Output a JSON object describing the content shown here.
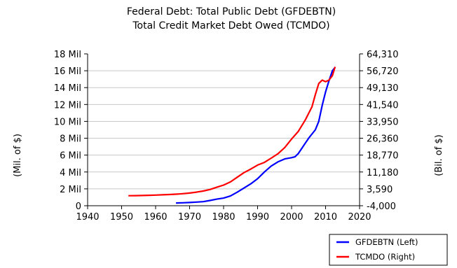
{
  "chart_data": {
    "type": "line",
    "title": "Federal Debt: Total Public Debt (GFDEBTN)",
    "subtitle": "Total Credit Market Debt Owed (TCMDO)",
    "xlabel": "",
    "ylabel_left": "(Mil. of $)",
    "ylabel_right": "(Bil. of $)",
    "xlim": [
      1940,
      2020
    ],
    "ylim_left": [
      0,
      18000000
    ],
    "ylim_right": [
      -4000,
      64310
    ],
    "grid": true,
    "legend_position": "bottom-right",
    "x_ticks": [
      "1940",
      "1950",
      "1960",
      "1970",
      "1980",
      "1990",
      "2000",
      "2010",
      "2020"
    ],
    "y_left_ticks": [
      "0",
      "2 Mil",
      "4 Mil",
      "6 Mil",
      "8 Mil",
      "10 Mil",
      "12 Mil",
      "14 Mil",
      "16 Mil",
      "18 Mil"
    ],
    "y_right_ticks": [
      "-4,000",
      "3,590",
      "11,180",
      "18,770",
      "26,360",
      "33,950",
      "41,540",
      "49,130",
      "56,720",
      "64,310"
    ],
    "series": [
      {
        "name": "GFDEBTN (Left)",
        "axis": "left",
        "color": "#0000ff",
        "points": [
          [
            1966,
            320000
          ],
          [
            1968,
            350000
          ],
          [
            1970,
            380000
          ],
          [
            1972,
            430000
          ],
          [
            1974,
            480000
          ],
          [
            1976,
            620000
          ],
          [
            1978,
            780000
          ],
          [
            1980,
            900000
          ],
          [
            1982,
            1150000
          ],
          [
            1984,
            1600000
          ],
          [
            1986,
            2100000
          ],
          [
            1988,
            2600000
          ],
          [
            1990,
            3200000
          ],
          [
            1992,
            4000000
          ],
          [
            1994,
            4700000
          ],
          [
            1996,
            5200000
          ],
          [
            1998,
            5550000
          ],
          [
            2000,
            5700000
          ],
          [
            2001,
            5800000
          ],
          [
            2002,
            6200000
          ],
          [
            2003,
            6800000
          ],
          [
            2004,
            7400000
          ],
          [
            2005,
            8000000
          ],
          [
            2006,
            8500000
          ],
          [
            2007,
            9000000
          ],
          [
            2008,
            10000000
          ],
          [
            2009,
            11900000
          ],
          [
            2010,
            13500000
          ],
          [
            2011,
            14800000
          ],
          [
            2012,
            16000000
          ],
          [
            2012.8,
            16400000
          ]
        ]
      },
      {
        "name": "TCMDO (Right)",
        "axis": "right",
        "color": "#ff0000",
        "points": [
          [
            1952,
            500
          ],
          [
            1954,
            520
          ],
          [
            1956,
            600
          ],
          [
            1958,
            700
          ],
          [
            1960,
            800
          ],
          [
            1962,
            900
          ],
          [
            1964,
            1050
          ],
          [
            1966,
            1200
          ],
          [
            1968,
            1400
          ],
          [
            1970,
            1700
          ],
          [
            1972,
            2100
          ],
          [
            1974,
            2600
          ],
          [
            1976,
            3300
          ],
          [
            1978,
            4300
          ],
          [
            1980,
            5300
          ],
          [
            1982,
            6700
          ],
          [
            1984,
            8800
          ],
          [
            1986,
            10900
          ],
          [
            1988,
            12500
          ],
          [
            1990,
            14300
          ],
          [
            1992,
            15500
          ],
          [
            1994,
            17400
          ],
          [
            1996,
            19400
          ],
          [
            1998,
            22200
          ],
          [
            2000,
            26000
          ],
          [
            2002,
            29500
          ],
          [
            2004,
            34500
          ],
          [
            2006,
            40500
          ],
          [
            2007,
            46000
          ],
          [
            2008,
            51000
          ],
          [
            2009,
            52500
          ],
          [
            2010,
            51800
          ],
          [
            2011,
            52500
          ],
          [
            2012,
            54500
          ],
          [
            2012.8,
            58500
          ]
        ]
      }
    ]
  }
}
